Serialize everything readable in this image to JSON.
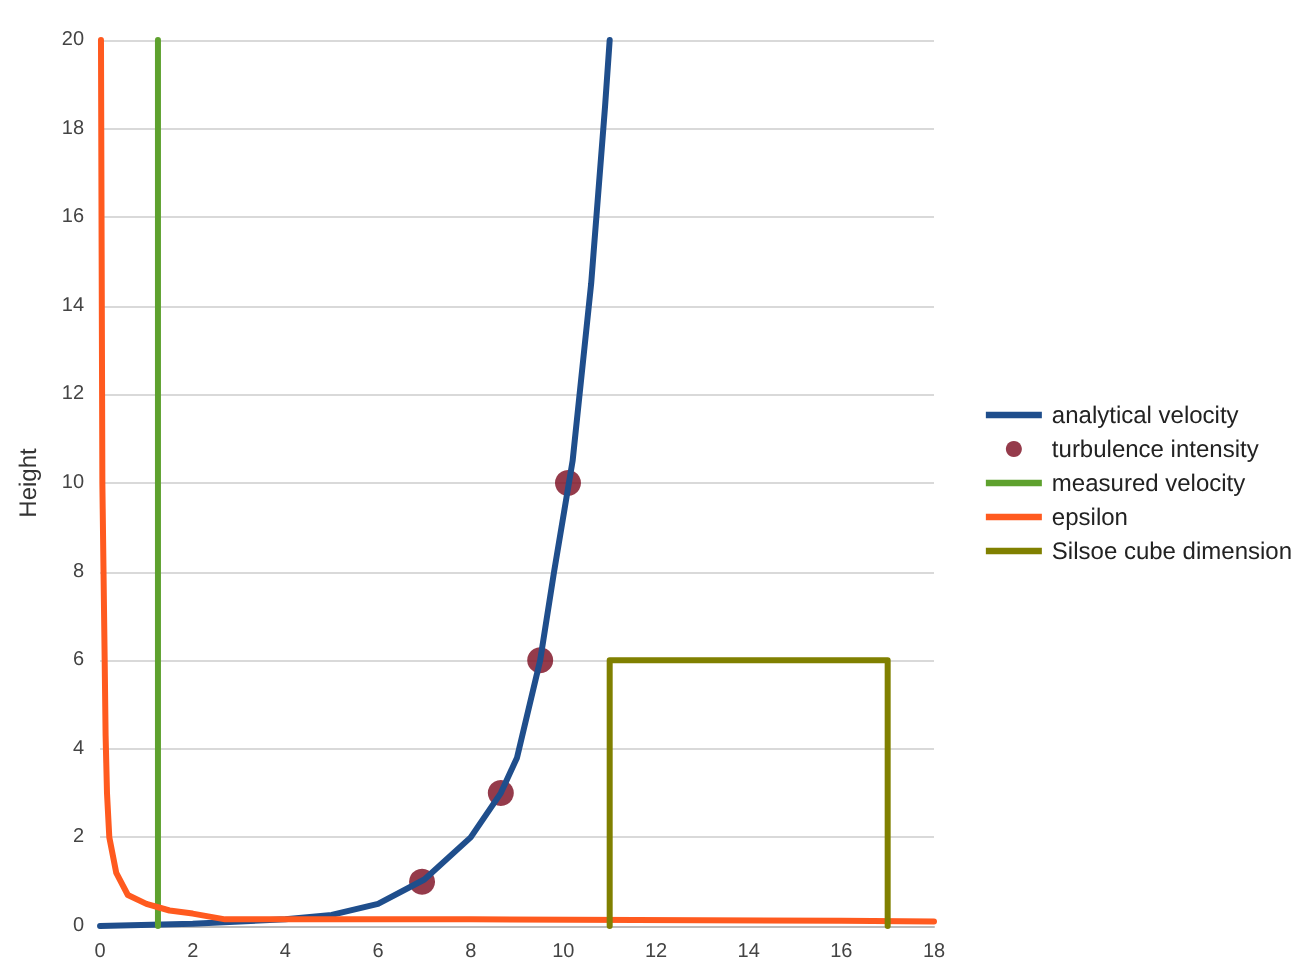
{
  "chart_data": {
    "type": "line",
    "ylabel": "Height",
    "xlim": [
      0,
      18
    ],
    "xticks": [
      0,
      2,
      4,
      6,
      8,
      10,
      12,
      14,
      16,
      18
    ],
    "ylim": [
      0,
      20
    ],
    "yticks": [
      0,
      2,
      4,
      6,
      8,
      10,
      12,
      14,
      16,
      18,
      20
    ],
    "grid": "y",
    "legend": "right",
    "marker": "none",
    "line_style": "solid",
    "series": [
      {
        "name": "analytical velocity",
        "color": "#1f4e8c",
        "x": [
          0,
          2,
          4,
          5,
          6,
          7,
          8,
          8.65,
          9,
          9.5,
          9.8,
          10.2,
          10.4,
          10.6,
          10.75,
          10.9,
          11
        ],
        "values": [
          0,
          0.05,
          0.15,
          0.25,
          0.5,
          1.05,
          2,
          3,
          3.8,
          6,
          8,
          10.5,
          12.5,
          14.5,
          16.5,
          18.5,
          20
        ]
      },
      {
        "name": "turbulence intensity",
        "type": "scatter",
        "marker": "circle",
        "color": "#7b0a1e",
        "x": [
          6.95,
          8.65,
          9.5,
          10.1
        ],
        "values": [
          1,
          3,
          6,
          10
        ]
      },
      {
        "name": "measured velocity",
        "color": "#5ea12e",
        "x": [
          1.25,
          1.25
        ],
        "values": [
          0,
          20
        ]
      },
      {
        "name": "epsilon",
        "color": "#ff5a1f",
        "x": [
          0.02,
          0.05,
          0.1,
          0.12,
          0.15,
          0.2,
          0.35,
          0.6,
          1,
          1.5,
          2,
          2.7,
          4,
          8,
          16,
          18
        ],
        "values": [
          20,
          10,
          6,
          4.3,
          3,
          2,
          1.2,
          0.7,
          0.5,
          0.35,
          0.28,
          0.15,
          0.15,
          0.15,
          0.12,
          0.1
        ]
      },
      {
        "name": "Silsoe cube dimension",
        "color": "#808000",
        "x": [
          11,
          11,
          17,
          17
        ],
        "values": [
          0,
          6,
          6,
          0
        ]
      }
    ]
  }
}
